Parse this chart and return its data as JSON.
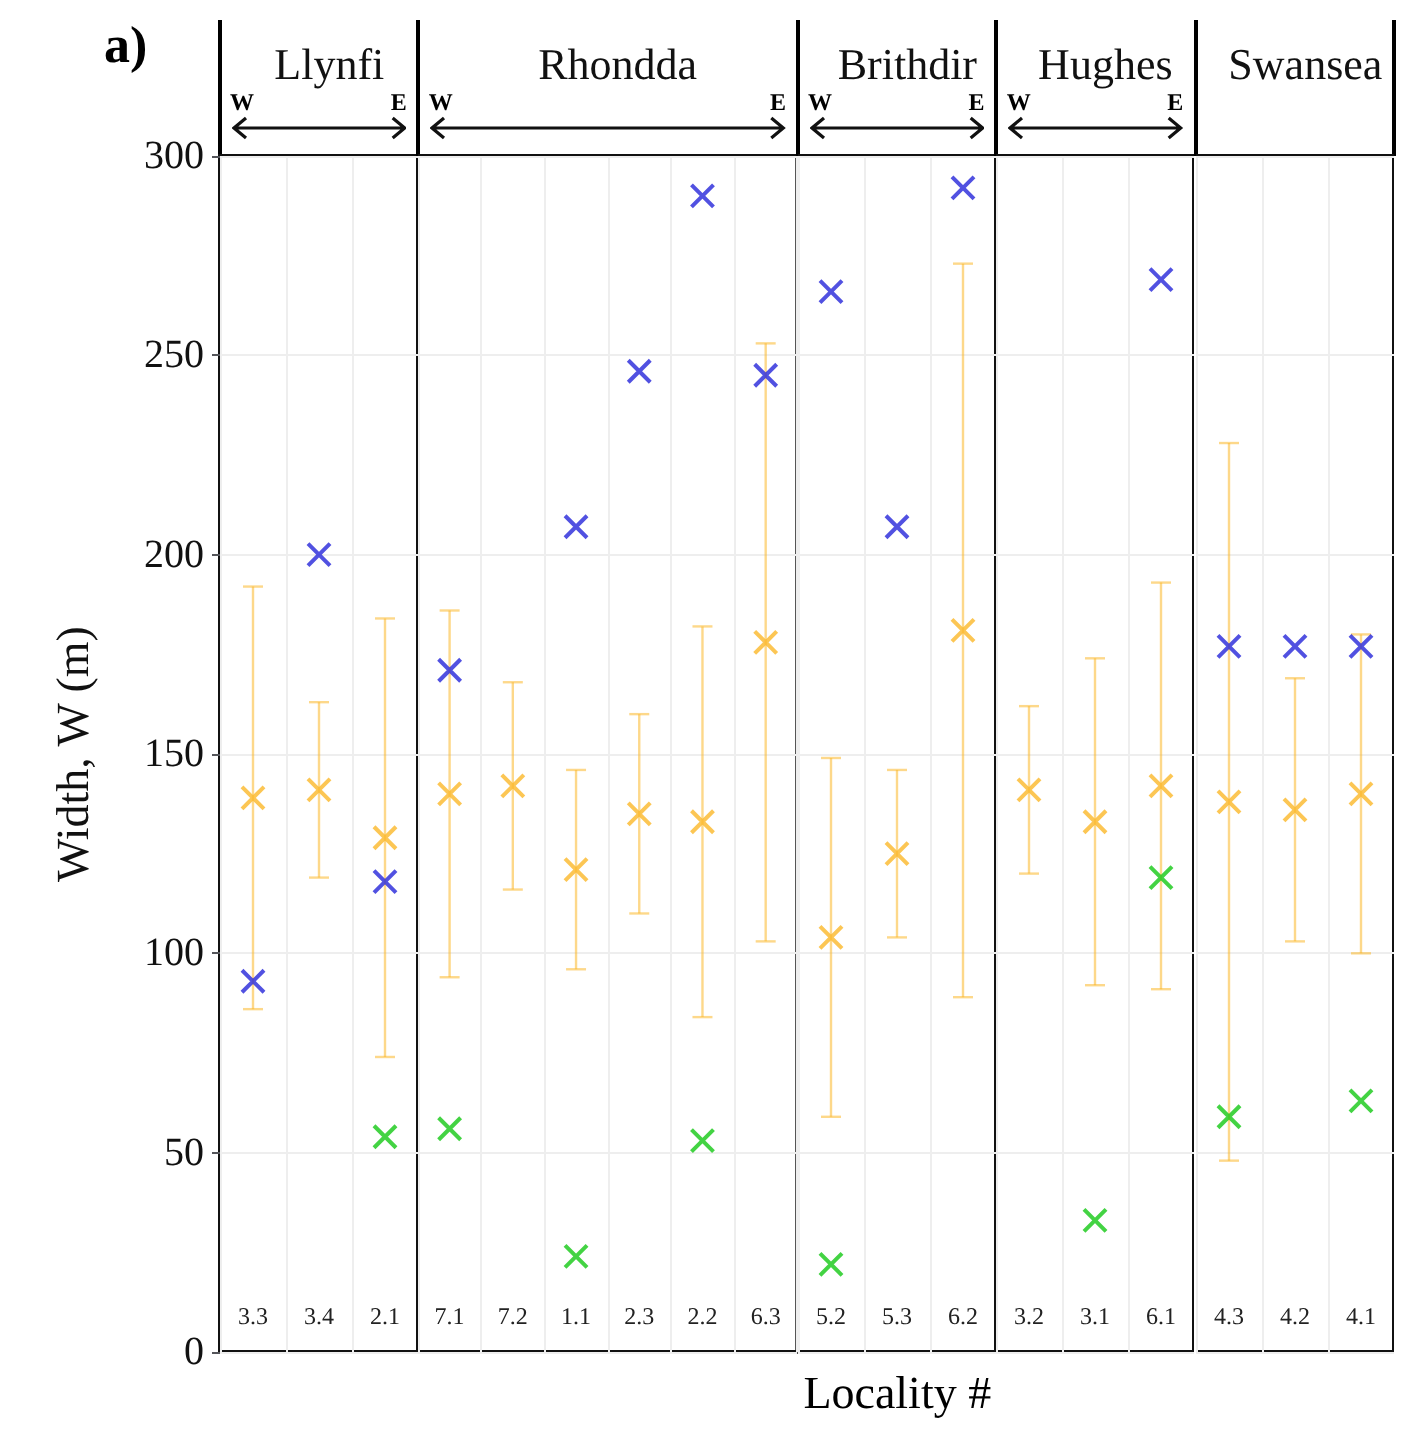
{
  "chart_data": [
    {
      "type": "scatter",
      "title": "Llynfi",
      "ylabel": "Width, W (m)",
      "annotations": [
        "a)",
        "W",
        "E"
      ],
      "categories": [
        "3.3",
        "3.4",
        "2.1"
      ],
      "ylim": [
        0,
        300
      ],
      "yticks": [
        0,
        50,
        100,
        150,
        200,
        250,
        300
      ],
      "grid": true,
      "marker": "cross",
      "series": [
        {
          "color": "#fbb829",
          "values": [
            139,
            141,
            129
          ],
          "errors": [
            [
              86,
              192
            ],
            [
              119,
              163
            ],
            [
              74,
              184
            ]
          ]
        },
        {
          "color": "#2626d9",
          "values": [
            93,
            200,
            118
          ]
        },
        {
          "color": "#14c814",
          "values": [
            null,
            null,
            54
          ]
        }
      ]
    },
    {
      "type": "scatter",
      "title": "Rhondda",
      "annotations": [
        "W",
        "E"
      ],
      "categories": [
        "7.1",
        "7.2",
        "1.1",
        "2.3",
        "2.2",
        "6.3"
      ],
      "ylim": [
        0,
        300
      ],
      "yticks": [
        0,
        50,
        100,
        150,
        200,
        250,
        300
      ],
      "grid": true,
      "marker": "cross",
      "tick_labels": "x",
      "series": [
        {
          "color": "#fbb829",
          "values": [
            140,
            142,
            121,
            135,
            133,
            178
          ],
          "errors": [
            [
              94,
              186
            ],
            [
              116,
              168
            ],
            [
              96,
              146
            ],
            [
              110,
              160
            ],
            [
              84,
              182
            ],
            [
              103,
              253
            ]
          ]
        },
        {
          "color": "#2626d9",
          "values": [
            171,
            null,
            207,
            246,
            290,
            245
          ]
        },
        {
          "color": "#14c814",
          "values": [
            56,
            null,
            24,
            null,
            53,
            null
          ]
        }
      ]
    },
    {
      "type": "scatter",
      "title": "Brithdir",
      "xlabel": "Locality #",
      "annotations": [
        "W",
        "E"
      ],
      "categories": [
        "5.2",
        "5.3",
        "6.2"
      ],
      "ylim": [
        0,
        300
      ],
      "yticks": [
        0,
        50,
        100,
        150,
        200,
        250,
        300
      ],
      "grid": true,
      "marker": "cross",
      "tick_labels": "x",
      "series": [
        {
          "color": "#fbb829",
          "values": [
            104,
            125,
            181
          ],
          "errors": [
            [
              59,
              149
            ],
            [
              104,
              146
            ],
            [
              89,
              273
            ]
          ]
        },
        {
          "color": "#2626d9",
          "values": [
            266,
            207,
            292
          ]
        },
        {
          "color": "#14c814",
          "values": [
            22,
            null,
            null
          ]
        }
      ]
    },
    {
      "type": "scatter",
      "title": "Hughes",
      "annotations": [
        "W",
        "E"
      ],
      "categories": [
        "3.2",
        "3.1",
        "6.1"
      ],
      "ylim": [
        0,
        300
      ],
      "yticks": [
        0,
        50,
        100,
        150,
        200,
        250,
        300
      ],
      "grid": true,
      "marker": "cross",
      "tick_labels": "x",
      "series": [
        {
          "color": "#fbb829",
          "values": [
            141,
            133,
            142
          ],
          "errors": [
            [
              120,
              162
            ],
            [
              92,
              174
            ],
            [
              91,
              193
            ]
          ]
        },
        {
          "color": "#2626d9",
          "values": [
            null,
            null,
            269
          ]
        },
        {
          "color": "#14c814",
          "values": [
            null,
            33,
            119
          ]
        }
      ]
    },
    {
      "type": "scatter",
      "title": "Swansea",
      "categories": [
        "4.3",
        "4.2",
        "4.1"
      ],
      "ylim": [
        0,
        300
      ],
      "yticks": [
        0,
        50,
        100,
        150,
        200,
        250,
        300
      ],
      "grid": true,
      "marker": "cross",
      "tick_labels": "x",
      "series": [
        {
          "color": "#fbb829",
          "values": [
            138,
            136,
            140
          ],
          "errors": [
            [
              48,
              228
            ],
            [
              103,
              169
            ],
            [
              100,
              180
            ]
          ]
        },
        {
          "color": "#2626d9",
          "values": [
            177,
            177,
            177
          ]
        },
        {
          "color": "#14c814",
          "values": [
            59,
            null,
            63
          ]
        }
      ]
    }
  ]
}
